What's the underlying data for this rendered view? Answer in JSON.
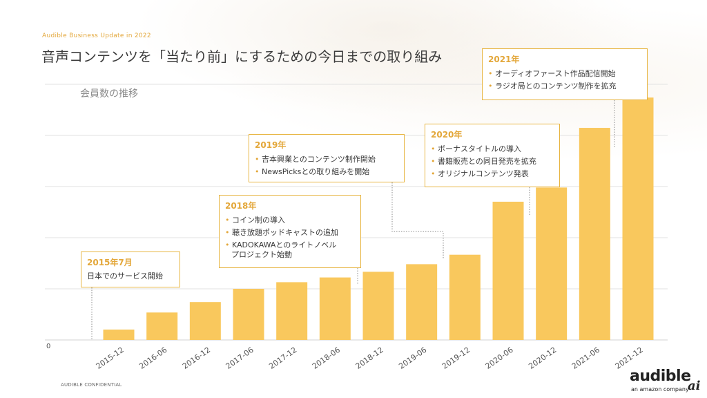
{
  "header": {
    "small": "Audible Business Update in 2022",
    "title": "音声コンテンツを「当たり前」にするための今日までの取り組み"
  },
  "chart_data": {
    "type": "bar",
    "subtitle": "会員数の推移",
    "categories": [
      "2015-12",
      "2016-06",
      "2016-12",
      "2017-06",
      "2017-12",
      "2018-06",
      "2018-12",
      "2019-06",
      "2019-12",
      "2020-06",
      "2020-12",
      "2021-06",
      "2021-12"
    ],
    "values": [
      0.55,
      1.45,
      2.0,
      2.7,
      3.05,
      3.3,
      3.6,
      4.0,
      4.5,
      7.3,
      8.05,
      11.2,
      12.8
    ],
    "zero_label": "0",
    "ylim": [
      0,
      13.5
    ],
    "grid": true,
    "bar_color": "#f9c85d"
  },
  "callouts": [
    {
      "year": "2015年7月",
      "items": [
        "日本でのサービス開始"
      ],
      "bulleted": false
    },
    {
      "year": "2018年",
      "items": [
        "コイン制の導入",
        "聴き放題ポッドキャストの追加",
        "KADOKAWAとのライトノベル",
        "プロジェクト始動"
      ],
      "bulleted": true
    },
    {
      "year": "2019年",
      "items": [
        "吉本興業とのコンテンツ制作開始",
        "NewsPicksとの取り組みを開始"
      ],
      "bulleted": true
    },
    {
      "year": "2020年",
      "items": [
        "ボーナスタイトルの導入",
        "書籍販売との同日発売を拡充",
        "オリジナルコンテンツ発表"
      ],
      "bulleted": true
    },
    {
      "year": "2021年",
      "items": [
        "オーディオファースト作品配信開始",
        "ラジオ局とのコンテンツ制作を拡充"
      ],
      "bulleted": true
    }
  ],
  "footer": {
    "confidential": "AUDIBLE CONFIDENTIAL"
  },
  "logo": {
    "word": "audible",
    "sub": "an amazon company",
    "ai": "ai"
  },
  "colors": {
    "accent": "#e3a73a",
    "bar": "#f9c85d",
    "box_border": "#e7b43f"
  }
}
